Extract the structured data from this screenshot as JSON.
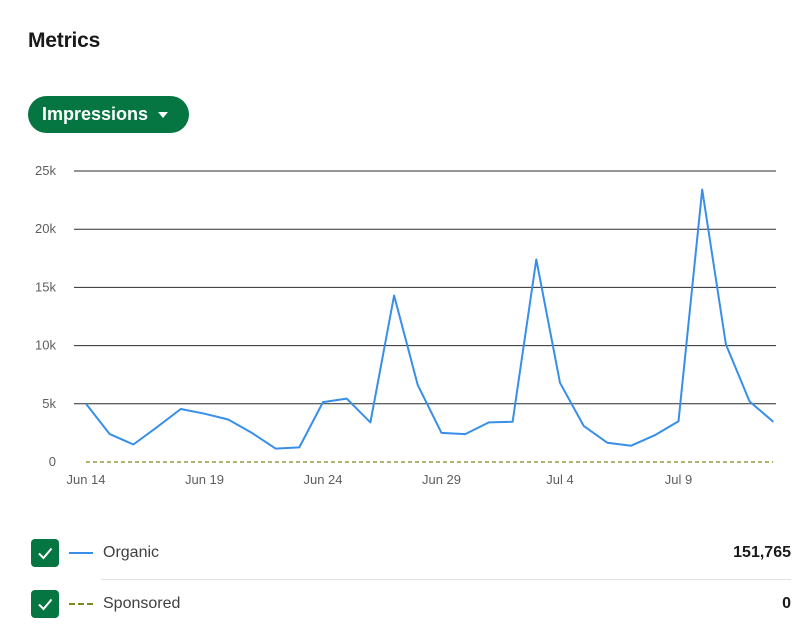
{
  "header": {
    "title": "Metrics"
  },
  "metric_selector": {
    "label": "Impressions"
  },
  "legend": {
    "items": [
      {
        "label": "Organic",
        "value": "151,765",
        "checked": true,
        "color": "#378fe9"
      },
      {
        "label": "Sponsored",
        "value": "0",
        "checked": true,
        "color": "#7a8a1c"
      }
    ]
  },
  "chart_data": {
    "type": "line",
    "x_tick_labels": [
      "Jun 14",
      "Jun 19",
      "Jun 24",
      "Jun 29",
      "Jul 4",
      "Jul 9"
    ],
    "y_tick_labels": [
      "0",
      "5k",
      "10k",
      "15k",
      "20k",
      "25k"
    ],
    "ylim": [
      0,
      25000
    ],
    "grid": true,
    "x": [
      "Jun 14",
      "Jun 15",
      "Jun 16",
      "Jun 17",
      "Jun 18",
      "Jun 19",
      "Jun 20",
      "Jun 21",
      "Jun 22",
      "Jun 23",
      "Jun 24",
      "Jun 25",
      "Jun 26",
      "Jun 27",
      "Jun 28",
      "Jun 29",
      "Jun 30",
      "Jul 1",
      "Jul 2",
      "Jul 3",
      "Jul 4",
      "Jul 5",
      "Jul 6",
      "Jul 7",
      "Jul 8",
      "Jul 9",
      "Jul 10",
      "Jul 11",
      "Jul 12",
      "Jul 13"
    ],
    "series": [
      {
        "name": "Organic",
        "color": "#378fe9",
        "style": "solid",
        "values": [
          5000,
          2400,
          1500,
          3000,
          4550,
          4150,
          3650,
          2500,
          1150,
          1250,
          5150,
          5450,
          3400,
          14300,
          6600,
          2500,
          2400,
          3400,
          3450,
          17400,
          6800,
          3100,
          1650,
          1400,
          2300,
          3500,
          23400,
          10100,
          5200,
          3450
        ]
      },
      {
        "name": "Sponsored",
        "color": "#7a8a1c",
        "style": "dashed",
        "values": [
          0,
          0,
          0,
          0,
          0,
          0,
          0,
          0,
          0,
          0,
          0,
          0,
          0,
          0,
          0,
          0,
          0,
          0,
          0,
          0,
          0,
          0,
          0,
          0,
          0,
          0,
          0,
          0,
          0,
          0
        ]
      }
    ]
  }
}
